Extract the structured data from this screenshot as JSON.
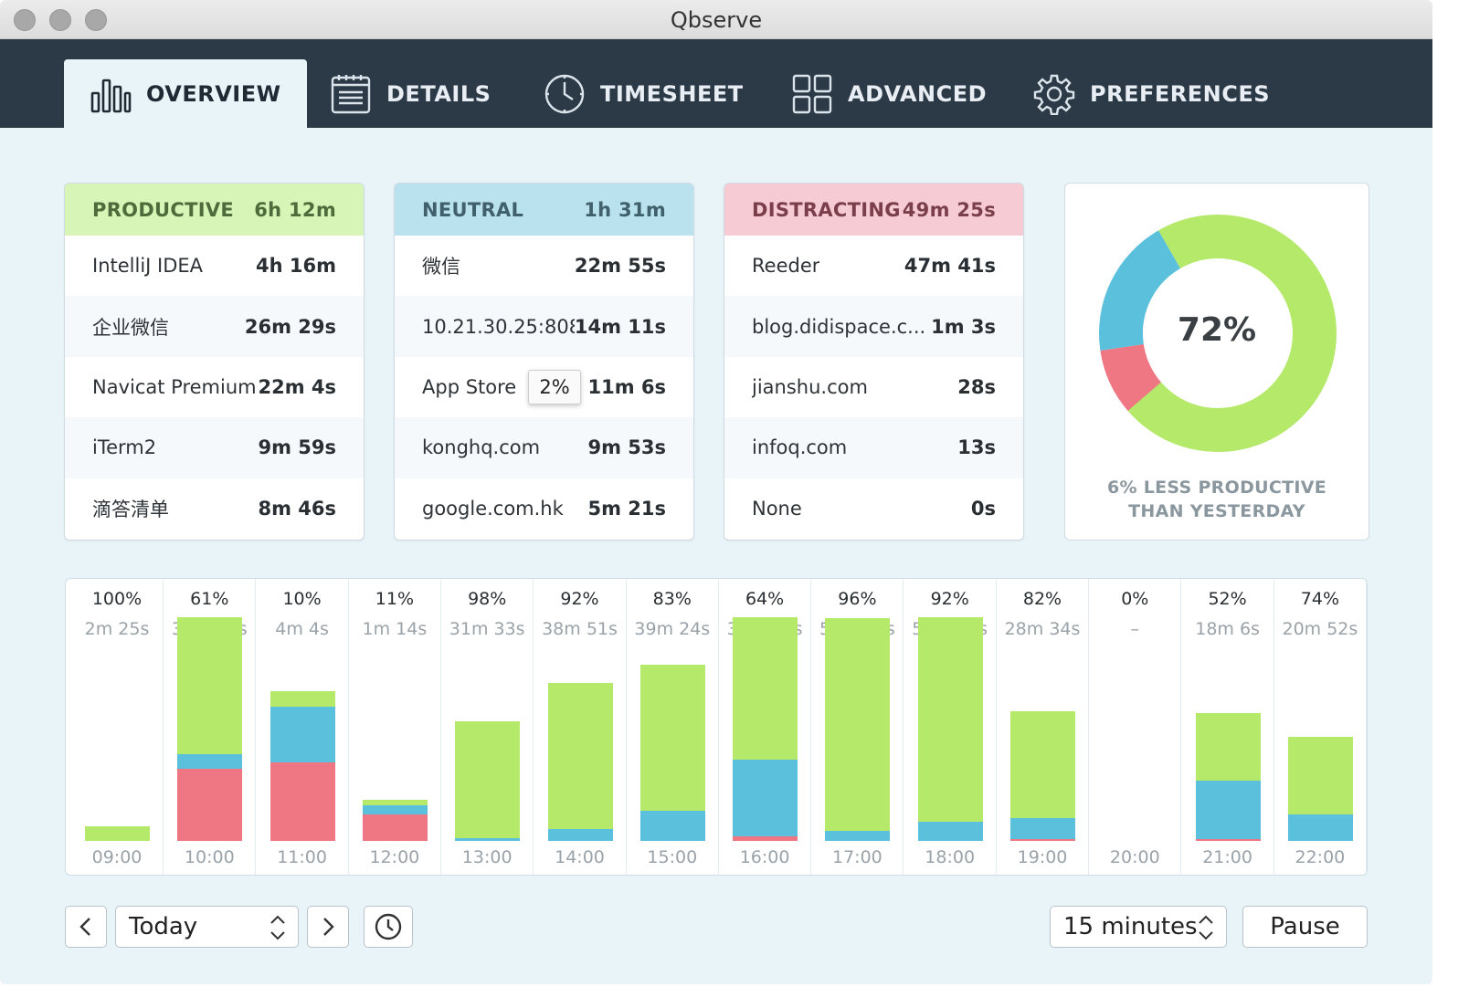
{
  "window": {
    "title": "Qbserve"
  },
  "tabs": [
    {
      "label": "OVERVIEW",
      "icon": "bar-chart-icon"
    },
    {
      "label": "DETAILS",
      "icon": "document-list-icon"
    },
    {
      "label": "TIMESHEET",
      "icon": "clock-icon"
    },
    {
      "label": "ADVANCED",
      "icon": "grid-icon"
    },
    {
      "label": "PREFERENCES",
      "icon": "gear-icon"
    }
  ],
  "cards": {
    "productive": {
      "title": "PRODUCTIVE",
      "total": "6h 12m",
      "rows": [
        {
          "name": "IntelliJ IDEA",
          "time": "4h 16m"
        },
        {
          "name": "企业微信",
          "time": "26m 29s"
        },
        {
          "name": "Navicat Premium",
          "time": "22m 4s"
        },
        {
          "name": "iTerm2",
          "time": "9m 59s"
        },
        {
          "name": "滴答清单",
          "time": "8m 46s"
        }
      ]
    },
    "neutral": {
      "title": "NEUTRAL",
      "total": "1h 31m",
      "rows": [
        {
          "name": "微信",
          "time": "22m 55s"
        },
        {
          "name": "10.21.30.25:8080",
          "time": "14m 11s"
        },
        {
          "name": "App Store",
          "time": "11m 6s"
        },
        {
          "name": "konghq.com",
          "time": "9m 53s"
        },
        {
          "name": "google.com.hk",
          "time": "5m 21s"
        }
      ],
      "tooltip": "2%"
    },
    "distracting": {
      "title": "DISTRACTING",
      "total": "49m 25s",
      "rows": [
        {
          "name": "Reeder",
          "time": "47m 41s"
        },
        {
          "name": "blog.didispace.c...",
          "time": "1m 3s"
        },
        {
          "name": "jianshu.com",
          "time": "28s"
        },
        {
          "name": "infoq.com",
          "time": "13s"
        },
        {
          "name": "None",
          "time": "0s"
        }
      ]
    }
  },
  "summary": {
    "productivity": "72%",
    "caption_line1": "6% LESS PRODUCTIVE",
    "caption_line2": "THAN YESTERDAY"
  },
  "chart_data": {
    "type": "bar",
    "donut": {
      "type": "pie",
      "segments": [
        {
          "label": "PRODUCTIVE",
          "value": 72,
          "color": "#b4e96a"
        },
        {
          "label": "DISTRACTING",
          "value": 9,
          "color": "#ef7784"
        },
        {
          "label": "NEUTRAL",
          "value": 19,
          "color": "#5bc0dc"
        }
      ]
    },
    "colors": {
      "productive": "#b4e96a",
      "neutral": "#5bc0dc",
      "distracting": "#ef7784"
    },
    "max_minutes": 60,
    "hours": [
      {
        "hour": "09:00",
        "pct": "100%",
        "duration": "2m 25s",
        "productive": 2.4,
        "neutral": 0,
        "distracting": 0
      },
      {
        "hour": "10:00",
        "pct": "61%",
        "duration": "36m 42s",
        "productive": 22.4,
        "neutral": 2.5,
        "distracting": 11.8
      },
      {
        "hour": "11:00",
        "pct": "10%",
        "duration": "4m 4s",
        "productive": 2.5,
        "neutral": 9.2,
        "distracting": 12.9
      },
      {
        "hour": "12:00",
        "pct": "11%",
        "duration": "1m 14s",
        "productive": 0.8,
        "neutral": 1.5,
        "distracting": 4.4
      },
      {
        "hour": "13:00",
        "pct": "98%",
        "duration": "31m 33s",
        "productive": 19.3,
        "neutral": 0.4,
        "distracting": 0
      },
      {
        "hour": "14:00",
        "pct": "92%",
        "duration": "38m 51s",
        "productive": 23.9,
        "neutral": 2.0,
        "distracting": 0
      },
      {
        "hour": "15:00",
        "pct": "83%",
        "duration": "39m 24s",
        "productive": 23.9,
        "neutral": 5.0,
        "distracting": 0
      },
      {
        "hour": "16:00",
        "pct": "64%",
        "duration": "38m 23s",
        "productive": 23.4,
        "neutral": 12.5,
        "distracting": 0.8
      },
      {
        "hour": "17:00",
        "pct": "96%",
        "duration": "57m 27s",
        "productive": 35.0,
        "neutral": 1.6,
        "distracting": 0
      },
      {
        "hour": "18:00",
        "pct": "92%",
        "duration": "54m 57s",
        "productive": 33.6,
        "neutral": 3.1,
        "distracting": 0
      },
      {
        "hour": "19:00",
        "pct": "82%",
        "duration": "28m 34s",
        "productive": 17.5,
        "neutral": 3.5,
        "distracting": 0.3
      },
      {
        "hour": "20:00",
        "pct": "0%",
        "duration": "–",
        "productive": 0,
        "neutral": 0,
        "distracting": 0
      },
      {
        "hour": "21:00",
        "pct": "52%",
        "duration": "18m 6s",
        "productive": 11.1,
        "neutral": 9.6,
        "distracting": 0.3
      },
      {
        "hour": "22:00",
        "pct": "74%",
        "duration": "20m 52s",
        "productive": 12.8,
        "neutral": 4.3,
        "distracting": 0
      }
    ]
  },
  "controls": {
    "prev_icon": "chevron-left-icon",
    "date_value": "Today",
    "next_icon": "chevron-right-icon",
    "clock_icon": "clock-icon",
    "interval_value": "15 minutes",
    "pause_label": "Pause"
  }
}
